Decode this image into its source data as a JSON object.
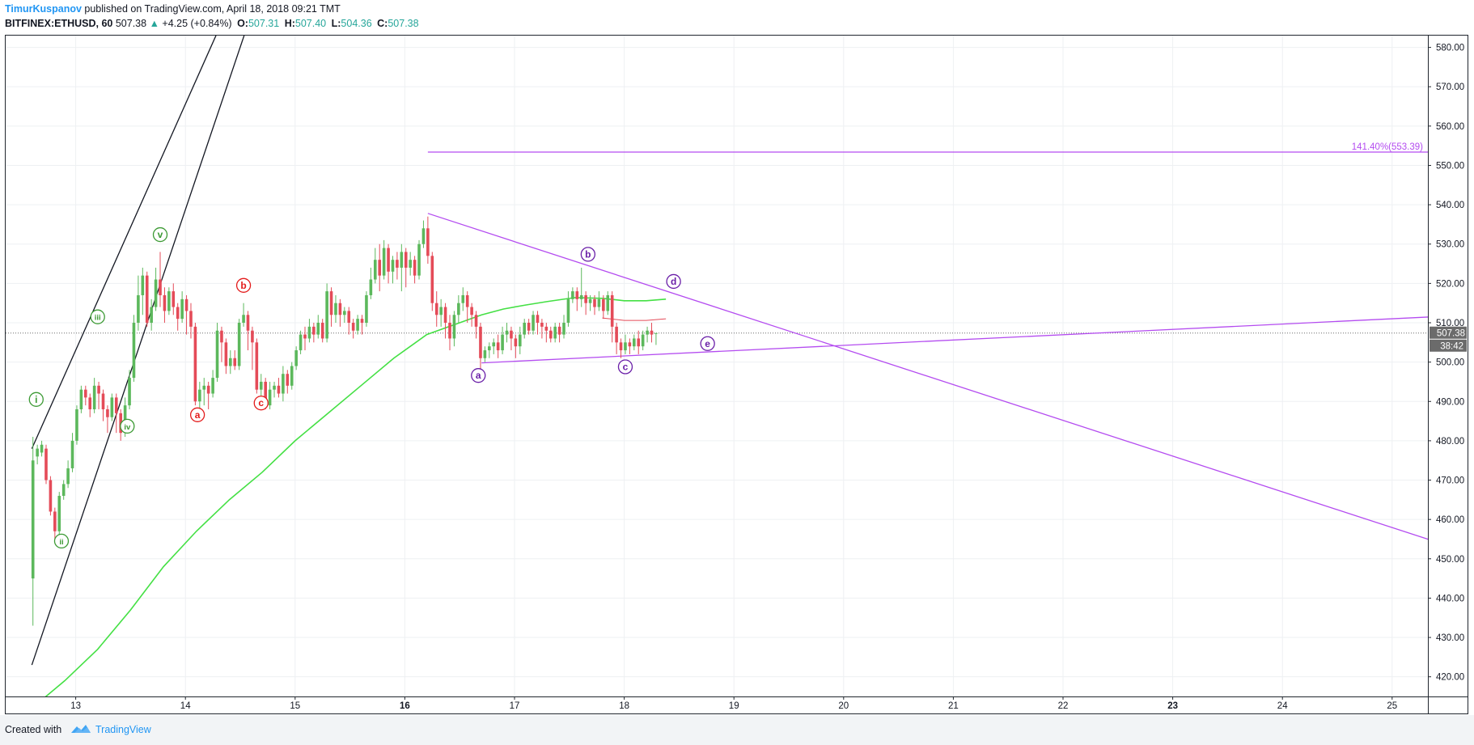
{
  "header": {
    "author": "TimurKuspanov",
    "published_text": "published on TradingView.com, April 18, 2018 09:21 TMT",
    "symbol": "BITFINEX:ETHUSD, 60",
    "last_price": "507.38",
    "change_arrow": "▲",
    "change": "+4.25 (+0.84%)",
    "ohlc": [
      {
        "label": "O:",
        "value": "507.31"
      },
      {
        "label": "H:",
        "value": "507.40"
      },
      {
        "label": "L:",
        "value": "504.36"
      },
      {
        "label": "C:",
        "value": "507.38"
      }
    ]
  },
  "footer": {
    "created_with": "Created with",
    "brand": "TradingView"
  },
  "colors": {
    "up": "#5cb85c",
    "down": "#e44b58",
    "ma_line": "#44e044",
    "purple": "#b44cf0",
    "label_red": "#e31b1b",
    "label_green": "#3c9a34",
    "label_purple": "#6a1fa8",
    "trend_black": "#131722"
  },
  "chart_data": {
    "type": "candlestick",
    "x_tick_labels": [
      "13",
      "14",
      "15",
      "16",
      "17",
      "18",
      "19",
      "20",
      "21",
      "22",
      "23",
      "24",
      "25"
    ],
    "y_tick_labels": [
      "420.00",
      "430.00",
      "440.00",
      "450.00",
      "460.00",
      "470.00",
      "480.00",
      "490.00",
      "500.00",
      "510.00",
      "520.00",
      "530.00",
      "540.00",
      "550.00",
      "560.00",
      "570.00",
      "580.00"
    ],
    "ylim": [
      415,
      583
    ],
    "last_price_label": "507.38",
    "countdown_label": "38:42",
    "fib_label": "141.40%(553.39)",
    "fib_level": 553.39,
    "candles": [
      [
        12.61,
        445,
        475,
        433,
        481
      ],
      [
        12.65,
        476,
        478,
        474,
        479
      ],
      [
        12.69,
        477,
        479,
        476,
        480
      ],
      [
        12.73,
        478,
        470,
        469,
        479
      ],
      [
        12.77,
        470,
        462,
        461,
        471
      ],
      [
        12.81,
        462,
        457,
        455,
        463
      ],
      [
        12.85,
        457,
        466,
        456,
        467
      ],
      [
        12.89,
        466,
        469,
        465,
        470
      ],
      [
        12.93,
        469,
        473,
        468,
        475
      ],
      [
        12.97,
        473,
        480,
        472,
        482
      ],
      [
        13.01,
        480,
        488,
        479,
        489
      ],
      [
        13.05,
        488,
        493,
        487,
        494
      ],
      [
        13.09,
        493,
        491,
        489,
        494
      ],
      [
        13.13,
        491,
        488,
        486,
        492
      ],
      [
        13.17,
        488,
        494,
        487,
        496
      ],
      [
        13.21,
        494,
        492,
        488,
        495
      ],
      [
        13.25,
        492,
        488,
        485,
        493
      ],
      [
        13.29,
        488,
        486,
        482,
        489
      ],
      [
        13.33,
        486,
        491,
        485,
        492
      ],
      [
        13.37,
        491,
        487,
        482,
        492
      ],
      [
        13.41,
        487,
        482,
        480,
        488
      ],
      [
        13.45,
        482,
        489,
        481,
        491
      ],
      [
        13.49,
        489,
        496,
        488,
        498
      ],
      [
        13.53,
        496,
        510,
        495,
        512
      ],
      [
        13.57,
        510,
        517,
        508,
        522
      ],
      [
        13.61,
        517,
        522,
        512,
        524
      ],
      [
        13.65,
        522,
        510,
        509,
        523
      ],
      [
        13.69,
        510,
        514,
        508,
        516
      ],
      [
        13.73,
        514,
        521,
        513,
        524
      ],
      [
        13.77,
        521,
        517,
        514,
        528
      ],
      [
        13.81,
        517,
        513,
        510,
        519
      ],
      [
        13.85,
        513,
        518,
        512,
        519
      ],
      [
        13.89,
        518,
        514,
        512,
        520
      ],
      [
        13.93,
        514,
        511,
        508,
        515
      ],
      [
        13.97,
        511,
        516,
        510,
        518
      ],
      [
        14.01,
        516,
        513,
        507,
        517
      ],
      [
        14.05,
        513,
        509,
        506,
        515
      ],
      [
        14.09,
        509,
        490,
        489,
        510
      ],
      [
        14.13,
        490,
        493,
        486,
        495
      ],
      [
        14.17,
        493,
        494,
        489,
        496
      ],
      [
        14.21,
        494,
        492,
        488,
        495
      ],
      [
        14.25,
        492,
        496,
        491,
        498
      ],
      [
        14.29,
        496,
        508,
        495,
        510
      ],
      [
        14.33,
        508,
        505,
        500,
        509
      ],
      [
        14.37,
        505,
        499,
        497,
        506
      ],
      [
        14.41,
        499,
        501,
        497,
        503
      ],
      [
        14.45,
        501,
        499,
        498,
        503
      ],
      [
        14.49,
        499,
        510,
        498,
        511
      ],
      [
        14.53,
        510,
        512,
        509,
        515
      ],
      [
        14.57,
        512,
        508,
        503,
        513
      ],
      [
        14.61,
        508,
        505,
        498,
        509
      ],
      [
        14.65,
        505,
        493,
        492,
        506
      ],
      [
        14.69,
        493,
        495,
        491,
        497
      ],
      [
        14.73,
        495,
        489,
        488,
        496
      ],
      [
        14.77,
        489,
        493,
        488,
        495
      ],
      [
        14.81,
        493,
        494,
        491,
        495
      ],
      [
        14.85,
        494,
        492,
        491,
        496
      ],
      [
        14.89,
        492,
        497,
        490,
        499
      ],
      [
        14.93,
        497,
        494,
        492,
        498
      ],
      [
        14.97,
        494,
        499,
        493,
        500
      ],
      [
        15.01,
        499,
        503,
        498,
        504
      ],
      [
        15.05,
        503,
        507,
        502,
        508
      ],
      [
        15.09,
        507,
        506,
        503,
        509
      ],
      [
        15.13,
        506,
        509,
        505,
        511
      ],
      [
        15.17,
        509,
        507,
        505,
        510
      ],
      [
        15.21,
        507,
        510,
        506,
        512
      ],
      [
        15.25,
        510,
        506,
        505,
        511
      ],
      [
        15.29,
        506,
        518,
        505,
        520
      ],
      [
        15.33,
        518,
        512,
        509,
        519
      ],
      [
        15.37,
        512,
        515,
        510,
        517
      ],
      [
        15.41,
        515,
        512,
        509,
        516
      ],
      [
        15.45,
        512,
        513,
        510,
        514
      ],
      [
        15.49,
        513,
        510,
        507,
        514
      ],
      [
        15.53,
        510,
        508,
        506,
        511
      ],
      [
        15.57,
        508,
        511,
        507,
        512
      ],
      [
        15.61,
        511,
        510,
        507,
        512
      ],
      [
        15.65,
        510,
        517,
        509,
        518
      ],
      [
        15.69,
        517,
        521,
        516,
        524
      ],
      [
        15.73,
        521,
        526,
        520,
        529
      ],
      [
        15.77,
        526,
        522,
        518,
        530
      ],
      [
        15.81,
        522,
        529,
        521,
        531
      ],
      [
        15.85,
        529,
        523,
        520,
        530
      ],
      [
        15.89,
        523,
        526,
        520,
        527
      ],
      [
        15.93,
        526,
        524,
        521,
        528
      ],
      [
        15.97,
        524,
        528,
        518,
        530
      ],
      [
        16.01,
        528,
        524,
        519,
        529
      ],
      [
        16.05,
        524,
        526,
        522,
        528
      ],
      [
        16.09,
        526,
        522,
        520,
        527
      ],
      [
        16.13,
        522,
        530,
        521,
        531
      ],
      [
        16.17,
        530,
        534,
        529,
        536
      ],
      [
        16.21,
        534,
        527,
        525,
        537
      ],
      [
        16.25,
        527,
        515,
        513,
        528
      ],
      [
        16.29,
        515,
        512,
        509,
        518
      ],
      [
        16.33,
        512,
        514,
        509,
        516
      ],
      [
        16.37,
        514,
        510,
        506,
        515
      ],
      [
        16.41,
        510,
        506,
        503,
        512
      ],
      [
        16.45,
        506,
        512,
        504,
        513
      ],
      [
        16.49,
        512,
        515,
        510,
        517
      ],
      [
        16.53,
        515,
        517,
        513,
        519
      ],
      [
        16.57,
        517,
        514,
        510,
        518
      ],
      [
        16.61,
        514,
        512,
        509,
        515
      ],
      [
        16.65,
        512,
        509,
        506,
        513
      ],
      [
        16.69,
        509,
        501,
        498,
        510
      ],
      [
        16.73,
        501,
        503,
        500,
        504
      ],
      [
        16.77,
        503,
        504,
        501,
        505
      ],
      [
        16.81,
        504,
        505,
        502,
        506
      ],
      [
        16.85,
        505,
        503,
        501,
        507
      ],
      [
        16.89,
        503,
        507,
        502,
        509
      ],
      [
        16.93,
        507,
        508,
        505,
        510
      ],
      [
        16.97,
        508,
        506,
        503,
        509
      ],
      [
        17.01,
        506,
        504,
        501,
        507
      ],
      [
        17.05,
        504,
        507,
        502,
        509
      ],
      [
        17.09,
        507,
        510,
        506,
        511
      ],
      [
        17.13,
        510,
        508,
        507,
        511
      ],
      [
        17.17,
        508,
        512,
        507,
        513
      ],
      [
        17.21,
        512,
        510,
        507,
        513
      ],
      [
        17.25,
        510,
        509,
        506,
        511
      ],
      [
        17.29,
        509,
        508,
        505,
        510
      ],
      [
        17.33,
        508,
        506,
        505,
        509
      ],
      [
        17.37,
        506,
        509,
        505,
        510
      ],
      [
        17.41,
        509,
        507,
        505,
        510
      ],
      [
        17.45,
        507,
        510,
        506,
        512
      ],
      [
        17.49,
        510,
        516,
        509,
        518
      ],
      [
        17.53,
        516,
        518,
        515,
        519
      ],
      [
        17.57,
        518,
        516,
        513,
        519
      ],
      [
        17.61,
        516,
        517,
        514,
        524
      ],
      [
        17.65,
        517,
        515,
        512,
        518
      ],
      [
        17.69,
        515,
        516,
        513,
        517
      ],
      [
        17.73,
        516,
        514,
        512,
        517
      ],
      [
        17.77,
        514,
        516,
        513,
        518
      ],
      [
        17.81,
        516,
        513,
        511,
        517
      ],
      [
        17.85,
        513,
        517,
        512,
        518
      ],
      [
        17.89,
        517,
        509,
        505,
        518
      ],
      [
        17.93,
        509,
        505,
        502,
        510
      ],
      [
        17.97,
        505,
        503,
        501,
        506
      ],
      [
        18.01,
        503,
        505,
        502,
        507
      ],
      [
        18.05,
        505,
        504,
        502,
        506
      ],
      [
        18.09,
        504,
        506,
        503,
        507
      ],
      [
        18.13,
        506,
        504,
        502,
        508
      ],
      [
        18.17,
        504,
        507,
        503,
        508
      ],
      [
        18.21,
        507,
        508,
        505,
        509
      ],
      [
        18.25,
        508,
        507,
        505,
        510
      ],
      [
        18.29,
        507.31,
        507.38,
        504.36,
        507.4
      ]
    ],
    "moving_average": [
      [
        12.6,
        412
      ],
      [
        12.9,
        419
      ],
      [
        13.2,
        427
      ],
      [
        13.5,
        437
      ],
      [
        13.8,
        448
      ],
      [
        14.1,
        457
      ],
      [
        14.4,
        465
      ],
      [
        14.7,
        472
      ],
      [
        15.0,
        480
      ],
      [
        15.3,
        487
      ],
      [
        15.6,
        494
      ],
      [
        15.9,
        501
      ],
      [
        16.2,
        507
      ],
      [
        16.5,
        510
      ],
      [
        16.7,
        512
      ],
      [
        16.9,
        513.5
      ],
      [
        17.1,
        514.5
      ],
      [
        17.3,
        515.4
      ],
      [
        17.55,
        516.4
      ],
      [
        17.8,
        516.2
      ],
      [
        18.0,
        515.6
      ],
      [
        18.2,
        515.6
      ],
      [
        18.38,
        516.0
      ]
    ],
    "trendlines": [
      {
        "name": "black-channel-upper",
        "color": "#131722",
        "from": [
          12.6,
          478
        ],
        "to": [
          14.47,
          595
        ]
      },
      {
        "name": "black-channel-lower",
        "color": "#131722",
        "from": [
          12.6,
          423
        ],
        "to": [
          14.68,
          595
        ]
      },
      {
        "name": "triangle-upper-line",
        "color": "#b44cf0",
        "from": [
          16.21,
          537.8
        ],
        "to": [
          25.73,
          451.3
        ]
      },
      {
        "name": "triangle-lower-line",
        "color": "#b44cf0",
        "from": [
          16.7,
          499.8
        ],
        "to": [
          25.73,
          512.0
        ]
      }
    ],
    "wave_labels": [
      {
        "text": "i",
        "x": 12.64,
        "y": 490.5,
        "color": "#3c9a34"
      },
      {
        "text": "ii",
        "x": 12.87,
        "y": 454.5,
        "color": "#3c9a34"
      },
      {
        "text": "iii",
        "x": 13.2,
        "y": 511.5,
        "color": "#3c9a34"
      },
      {
        "text": "iv",
        "x": 13.47,
        "y": 483.7,
        "color": "#3c9a34"
      },
      {
        "text": "v",
        "x": 13.77,
        "y": 532.4,
        "color": "#3c9a34"
      },
      {
        "text": "a",
        "x": 14.11,
        "y": 486.6,
        "color": "#e31b1b"
      },
      {
        "text": "b",
        "x": 14.53,
        "y": 519.5,
        "color": "#e31b1b"
      },
      {
        "text": "c",
        "x": 14.69,
        "y": 489.6,
        "color": "#e31b1b"
      },
      {
        "text": "a",
        "x": 16.67,
        "y": 496.6,
        "color": "#6a1fa8"
      },
      {
        "text": "b",
        "x": 17.67,
        "y": 527.4,
        "color": "#6a1fa8"
      },
      {
        "text": "c",
        "x": 18.01,
        "y": 498.8,
        "color": "#6a1fa8"
      },
      {
        "text": "d",
        "x": 18.45,
        "y": 520.5,
        "color": "#6a1fa8"
      },
      {
        "text": "e",
        "x": 18.76,
        "y": 504.7,
        "color": "#6a1fa8"
      }
    ]
  }
}
